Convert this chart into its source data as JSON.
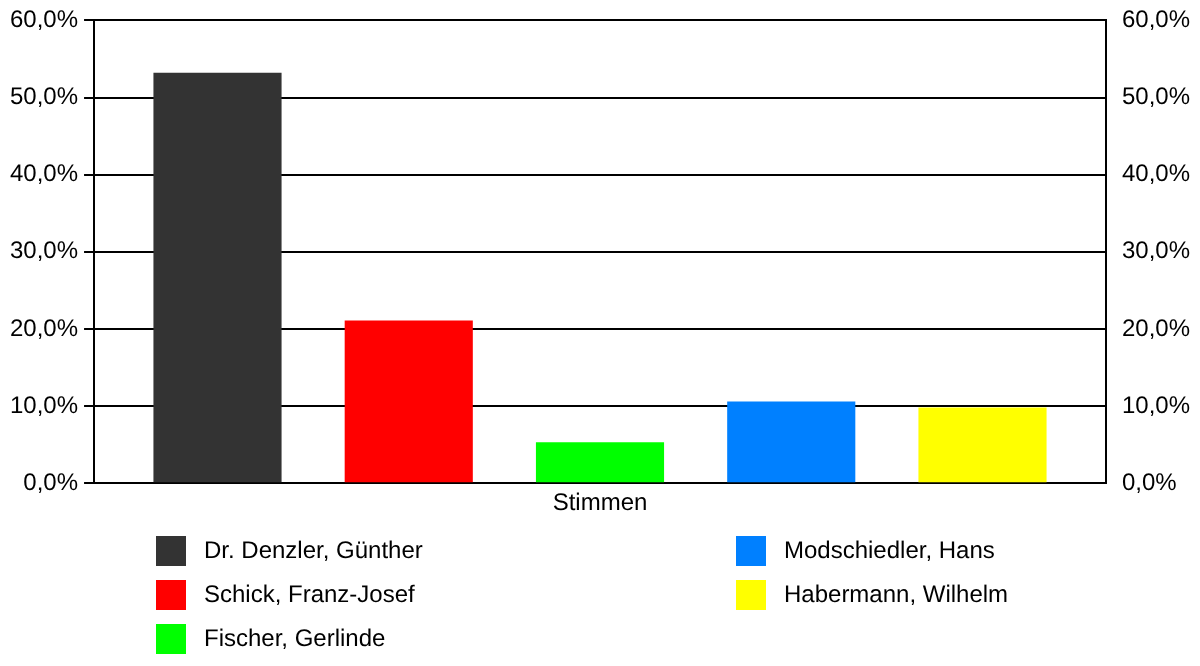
{
  "chart_data": {
    "type": "bar",
    "categories": [
      "Stimmen"
    ],
    "series": [
      {
        "name": "Dr. Denzler, Günther",
        "color": "#333333",
        "values": [
          53.2
        ]
      },
      {
        "name": "Schick, Franz-Josef",
        "color": "#ff0000",
        "values": [
          21.1
        ]
      },
      {
        "name": "Fischer, Gerlinde",
        "color": "#00ff00",
        "values": [
          5.3
        ]
      },
      {
        "name": "Modschiedler, Hans",
        "color": "#0080ff",
        "values": [
          10.6
        ]
      },
      {
        "name": "Habermann, Wilhelm",
        "color": "#ffff00",
        "values": [
          9.8
        ]
      }
    ],
    "ylim": [
      0,
      60
    ],
    "yticks": [
      {
        "value": 0,
        "label": "0,0%"
      },
      {
        "value": 10,
        "label": "10,0%"
      },
      {
        "value": 20,
        "label": "20,0%"
      },
      {
        "value": 30,
        "label": "30,0%"
      },
      {
        "value": 40,
        "label": "40,0%"
      },
      {
        "value": 50,
        "label": "50,0%"
      },
      {
        "value": 60,
        "label": "60,0%"
      }
    ],
    "grid": "y",
    "legend": "bottom"
  }
}
